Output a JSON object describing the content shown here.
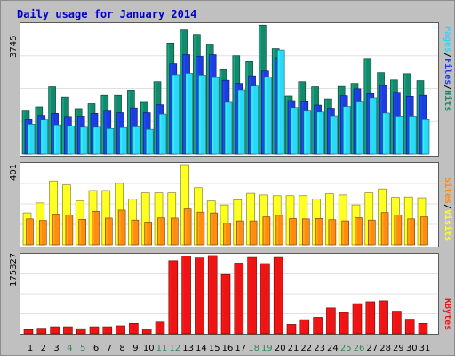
{
  "title": "Daily usage for January 2014",
  "colors": {
    "hits": "#138a6c",
    "files": "#1c3ee0",
    "pages": "#2ad9f5",
    "visits": "#ffff22",
    "sites": "#ff8c10",
    "kbytes": "#ee1414",
    "title": "#0000cc",
    "frame": "#c0c0c0",
    "grid": "#e0e0e0",
    "day_highlight": "#2e8b57"
  },
  "right_labels": {
    "hits_panel": {
      "pages": "Pages",
      "sep1": "/",
      "files": "Files",
      "sep2": "/",
      "hits": "Hits"
    },
    "visits_panel": {
      "sites": "Sites",
      "sep": "/",
      "visits": "Visits"
    },
    "kbytes_panel": {
      "kbytes": "KBytes"
    }
  },
  "chart_data": [
    {
      "type": "bar",
      "title": "Daily usage for January 2014",
      "panel": "hits-files-pages",
      "ymax_label": "3745",
      "ylim": [
        0,
        3745
      ],
      "categories": [
        "1",
        "2",
        "3",
        "4",
        "5",
        "6",
        "7",
        "8",
        "9",
        "10",
        "11",
        "12",
        "13",
        "14",
        "15",
        "16",
        "17",
        "18",
        "19",
        "20",
        "21",
        "22",
        "23",
        "24",
        "25",
        "26",
        "27",
        "28",
        "29",
        "30",
        "31"
      ],
      "weekend_days": [
        "4",
        "5",
        "11",
        "12",
        "18",
        "19",
        "25",
        "26"
      ],
      "series": [
        {
          "name": "Hits",
          "values": [
            1250,
            1370,
            1950,
            1650,
            1320,
            1460,
            1700,
            1700,
            1850,
            1500,
            2100,
            3220,
            3600,
            3470,
            3190,
            2450,
            2850,
            2680,
            3740,
            3060,
            1680,
            2100,
            1950,
            1600,
            1960,
            2050,
            2770,
            2360,
            2150,
            2330,
            2130
          ]
        },
        {
          "name": "Files",
          "values": [
            1000,
            1120,
            1180,
            1090,
            1100,
            1180,
            1250,
            1200,
            1340,
            1200,
            1430,
            2620,
            2880,
            2830,
            2880,
            2140,
            2050,
            2270,
            2410,
            2790,
            1550,
            1520,
            1420,
            1330,
            1690,
            1890,
            1750,
            1990,
            1790,
            1670,
            1700
          ]
        },
        {
          "name": "Pages",
          "values": [
            870,
            990,
            850,
            820,
            780,
            780,
            740,
            770,
            790,
            720,
            1160,
            2300,
            2340,
            2290,
            2220,
            1500,
            1860,
            1970,
            2240,
            3020,
            1350,
            1250,
            1220,
            1110,
            1380,
            1510,
            1630,
            1190,
            1100,
            1100,
            1000
          ]
        }
      ]
    },
    {
      "type": "bar",
      "panel": "visits-sites",
      "ymax_label": "401",
      "ylim": [
        0,
        401
      ],
      "categories": [
        "1",
        "2",
        "3",
        "4",
        "5",
        "6",
        "7",
        "8",
        "9",
        "10",
        "11",
        "12",
        "13",
        "14",
        "15",
        "16",
        "17",
        "18",
        "19",
        "20",
        "21",
        "22",
        "23",
        "24",
        "25",
        "26",
        "27",
        "28",
        "29",
        "30",
        "31"
      ],
      "series": [
        {
          "name": "Visits",
          "values": [
            160,
            210,
            320,
            300,
            220,
            272,
            272,
            308,
            230,
            260,
            260,
            260,
            401,
            286,
            220,
            200,
            226,
            258,
            250,
            246,
            246,
            246,
            230,
            256,
            250,
            200,
            260,
            280,
            238,
            240,
            236
          ]
        },
        {
          "name": "Sites",
          "values": [
            130,
            122,
            154,
            150,
            128,
            168,
            134,
            174,
            124,
            114,
            135,
            134,
            180,
            164,
            160,
            108,
            120,
            120,
            140,
            148,
            132,
            130,
            132,
            126,
            120,
            136,
            124,
            162,
            150,
            130,
            140
          ]
        }
      ]
    },
    {
      "type": "bar",
      "panel": "kbytes",
      "ymax_label": "175327",
      "ylim": [
        0,
        175327
      ],
      "categories": [
        "1",
        "2",
        "3",
        "4",
        "5",
        "6",
        "7",
        "8",
        "9",
        "10",
        "11",
        "12",
        "13",
        "14",
        "15",
        "16",
        "17",
        "18",
        "19",
        "20",
        "21",
        "22",
        "23",
        "24",
        "25",
        "26",
        "27",
        "28",
        "29",
        "30",
        "31"
      ],
      "series": [
        {
          "name": "KBytes",
          "values": [
            9000,
            12000,
            15000,
            15000,
            11000,
            15000,
            15000,
            17000,
            22000,
            10000,
            25000,
            155000,
            165000,
            161000,
            166000,
            126000,
            150000,
            162000,
            149000,
            162000,
            20000,
            30000,
            35000,
            55000,
            45000,
            64000,
            68000,
            70000,
            48000,
            31000,
            22000
          ]
        }
      ]
    }
  ]
}
